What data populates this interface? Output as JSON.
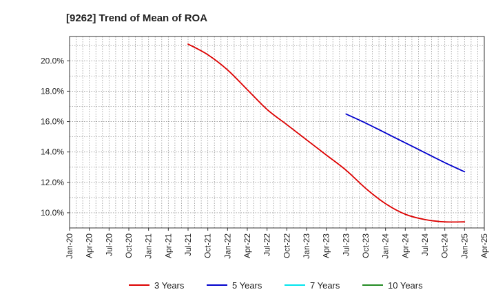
{
  "chart_data": {
    "type": "line",
    "title": "[9262]  Trend of Mean of ROA",
    "xlabel": "",
    "ylabel": "",
    "x_ticks": [
      "Jan-20",
      "Apr-20",
      "Jul-20",
      "Oct-20",
      "Jan-21",
      "Apr-21",
      "Jul-21",
      "Oct-21",
      "Jan-22",
      "Apr-22",
      "Jul-22",
      "Oct-22",
      "Jan-23",
      "Apr-23",
      "Jul-23",
      "Oct-23",
      "Jan-24",
      "Apr-24",
      "Jul-24",
      "Oct-24",
      "Jan-25",
      "Apr-25"
    ],
    "y_ticks": [
      "10.0%",
      "12.0%",
      "14.0%",
      "16.0%",
      "18.0%",
      "20.0%"
    ],
    "ylim": [
      9.0,
      21.6
    ],
    "grid": true,
    "legend_position": "bottom",
    "series": [
      {
        "name": "3 Years",
        "color": "#dd0000",
        "x": [
          "Jul-21",
          "Oct-21",
          "Jan-22",
          "Apr-22",
          "Jul-22",
          "Oct-22",
          "Jan-23",
          "Apr-23",
          "Jul-23",
          "Oct-23",
          "Jan-24",
          "Apr-24",
          "Jul-24",
          "Oct-24",
          "Jan-25"
        ],
        "values": [
          21.1,
          20.4,
          19.4,
          18.1,
          16.8,
          15.8,
          14.8,
          13.8,
          12.8,
          11.6,
          10.6,
          9.9,
          9.55,
          9.4,
          9.4
        ]
      },
      {
        "name": "5 Years",
        "color": "#0000cc",
        "x": [
          "Jul-23",
          "Oct-23",
          "Jan-24",
          "Apr-24",
          "Jul-24",
          "Oct-24",
          "Jan-25"
        ],
        "values": [
          16.5,
          15.9,
          15.25,
          14.6,
          13.95,
          13.3,
          12.7
        ]
      },
      {
        "name": "7 Years",
        "color": "#00e5ee",
        "x": [],
        "values": []
      },
      {
        "name": "10 Years",
        "color": "#228b22",
        "x": [],
        "values": []
      }
    ]
  }
}
